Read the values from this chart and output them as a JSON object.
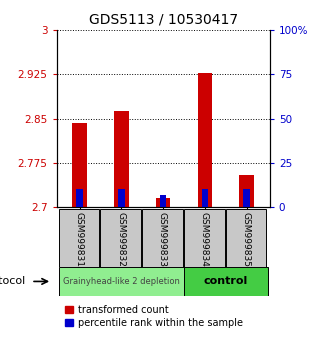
{
  "title": "GDS5113 / 10530417",
  "categories": [
    "GSM999831",
    "GSM999832",
    "GSM999833",
    "GSM999834",
    "GSM999835"
  ],
  "red_values": [
    2.843,
    2.863,
    2.715,
    2.928,
    2.755
  ],
  "blue_pct": [
    10.0,
    10.0,
    7.0,
    10.0,
    10.0
  ],
  "ylim_left": [
    2.7,
    3.0
  ],
  "ylim_right": [
    0,
    100
  ],
  "yticks_left": [
    2.7,
    2.775,
    2.85,
    2.925,
    3.0
  ],
  "yticks_right": [
    0,
    25,
    50,
    75,
    100
  ],
  "ytick_labels_left": [
    "2.7",
    "2.775",
    "2.85",
    "2.925",
    "3"
  ],
  "ytick_labels_right": [
    "0",
    "25",
    "50",
    "75",
    "100%"
  ],
  "red_color": "#cc0000",
  "blue_color": "#0000cc",
  "bar_bottom": 2.7,
  "group1_label": "Grainyhead-like 2 depletion",
  "group2_label": "control",
  "group1_color": "#90ee90",
  "group2_color": "#44cc44",
  "protocol_label": "protocol",
  "legend_red": "transformed count",
  "legend_blue": "percentile rank within the sample",
  "bg_color": "#ffffff",
  "sample_bg": "#c8c8c8",
  "n_group1": 3,
  "n_group2": 2
}
